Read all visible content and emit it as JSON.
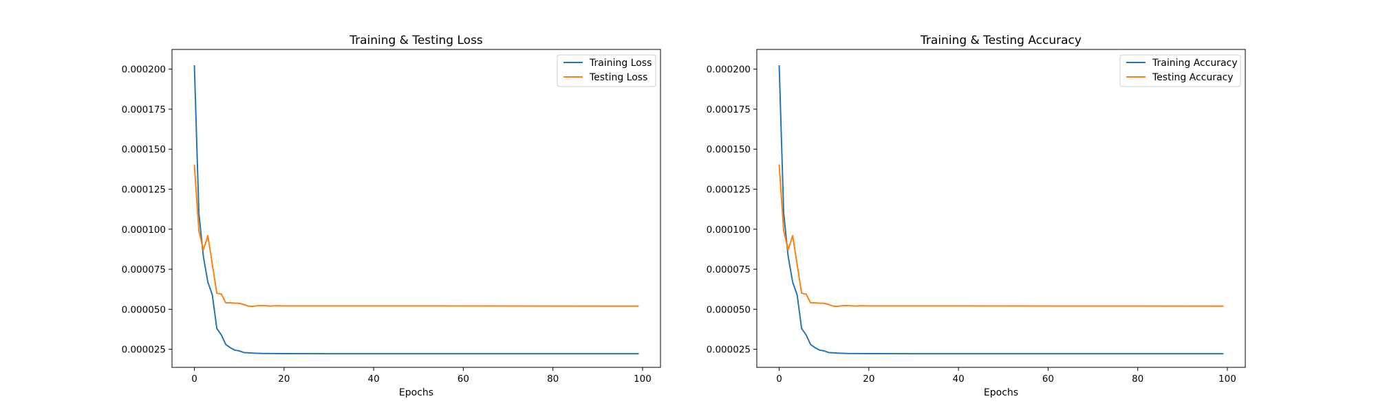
{
  "chart_data": [
    {
      "type": "line",
      "title": "Training & Testing Loss",
      "xlabel": "Epochs",
      "ylabel": "",
      "xlim": [
        -5,
        104
      ],
      "ylim": [
        1.37e-05,
        0.0002123
      ],
      "xticks": [
        0,
        20,
        40,
        60,
        80,
        100
      ],
      "yticks": [
        2.5e-05,
        5e-05,
        7.5e-05,
        0.0001,
        0.000125,
        0.00015,
        0.000175,
        0.0002
      ],
      "ytick_labels": [
        "0.000025",
        "0.000050",
        "0.000075",
        "0.000100",
        "0.000125",
        "0.000150",
        "0.000175",
        "0.000200"
      ],
      "grid": false,
      "legend_position": "top-right",
      "series": [
        {
          "name": "Training Loss",
          "color": "#1f77b4",
          "points": [
            [
              0,
              0.000202
            ],
            [
              1,
              0.00011
            ],
            [
              2,
              8.3e-05
            ],
            [
              3,
              6.7e-05
            ],
            [
              4,
              5.9e-05
            ],
            [
              5,
              3.8e-05
            ],
            [
              6,
              3.4e-05
            ],
            [
              7,
              2.8e-05
            ],
            [
              8,
              2.6e-05
            ],
            [
              9,
              2.45e-05
            ],
            [
              10,
              2.4e-05
            ],
            [
              11,
              2.3e-05
            ],
            [
              13,
              2.26e-05
            ],
            [
              15,
              2.24e-05
            ],
            [
              20,
              2.23e-05
            ],
            [
              30,
              2.22e-05
            ],
            [
              99,
              2.22e-05
            ]
          ]
        },
        {
          "name": "Testing Loss",
          "color": "#ff7f0e",
          "points": [
            [
              0,
              0.00014
            ],
            [
              1,
              9.9e-05
            ],
            [
              2,
              8.7e-05
            ],
            [
              3,
              9.6e-05
            ],
            [
              4,
              7.8e-05
            ],
            [
              5,
              6e-05
            ],
            [
              6,
              5.95e-05
            ],
            [
              7,
              5.4e-05
            ],
            [
              8,
              5.4e-05
            ],
            [
              9,
              5.38e-05
            ],
            [
              10,
              5.37e-05
            ],
            [
              11,
              5.3e-05
            ],
            [
              12,
              5.2e-05
            ],
            [
              13,
              5.18e-05
            ],
            [
              14,
              5.22e-05
            ],
            [
              15,
              5.23e-05
            ],
            [
              16,
              5.22e-05
            ],
            [
              17,
              5.2e-05
            ],
            [
              18,
              5.22e-05
            ],
            [
              20,
              5.21e-05
            ],
            [
              30,
              5.21e-05
            ],
            [
              99,
              5.2e-05
            ]
          ]
        }
      ]
    },
    {
      "type": "line",
      "title": "Training & Testing Accuracy",
      "xlabel": "Epochs",
      "ylabel": "",
      "xlim": [
        -5,
        104
      ],
      "ylim": [
        1.37e-05,
        0.0002123
      ],
      "xticks": [
        0,
        20,
        40,
        60,
        80,
        100
      ],
      "yticks": [
        2.5e-05,
        5e-05,
        7.5e-05,
        0.0001,
        0.000125,
        0.00015,
        0.000175,
        0.0002
      ],
      "ytick_labels": [
        "0.000025",
        "0.000050",
        "0.000075",
        "0.000100",
        "0.000125",
        "0.000150",
        "0.000175",
        "0.000200"
      ],
      "grid": false,
      "legend_position": "top-right",
      "series": [
        {
          "name": "Training Accuracy",
          "color": "#1f77b4",
          "points": [
            [
              0,
              0.000202
            ],
            [
              1,
              0.00011
            ],
            [
              2,
              8.3e-05
            ],
            [
              3,
              6.7e-05
            ],
            [
              4,
              5.9e-05
            ],
            [
              5,
              3.8e-05
            ],
            [
              6,
              3.4e-05
            ],
            [
              7,
              2.8e-05
            ],
            [
              8,
              2.6e-05
            ],
            [
              9,
              2.45e-05
            ],
            [
              10,
              2.4e-05
            ],
            [
              11,
              2.3e-05
            ],
            [
              13,
              2.26e-05
            ],
            [
              15,
              2.24e-05
            ],
            [
              20,
              2.23e-05
            ],
            [
              30,
              2.22e-05
            ],
            [
              99,
              2.22e-05
            ]
          ]
        },
        {
          "name": "Testing Accuracy",
          "color": "#ff7f0e",
          "points": [
            [
              0,
              0.00014
            ],
            [
              1,
              9.9e-05
            ],
            [
              2,
              8.7e-05
            ],
            [
              3,
              9.6e-05
            ],
            [
              4,
              7.8e-05
            ],
            [
              5,
              6e-05
            ],
            [
              6,
              5.95e-05
            ],
            [
              7,
              5.4e-05
            ],
            [
              8,
              5.4e-05
            ],
            [
              9,
              5.38e-05
            ],
            [
              10,
              5.37e-05
            ],
            [
              11,
              5.3e-05
            ],
            [
              12,
              5.2e-05
            ],
            [
              13,
              5.18e-05
            ],
            [
              14,
              5.22e-05
            ],
            [
              15,
              5.23e-05
            ],
            [
              16,
              5.22e-05
            ],
            [
              17,
              5.2e-05
            ],
            [
              18,
              5.22e-05
            ],
            [
              20,
              5.21e-05
            ],
            [
              30,
              5.21e-05
            ],
            [
              99,
              5.2e-05
            ]
          ]
        }
      ]
    }
  ]
}
